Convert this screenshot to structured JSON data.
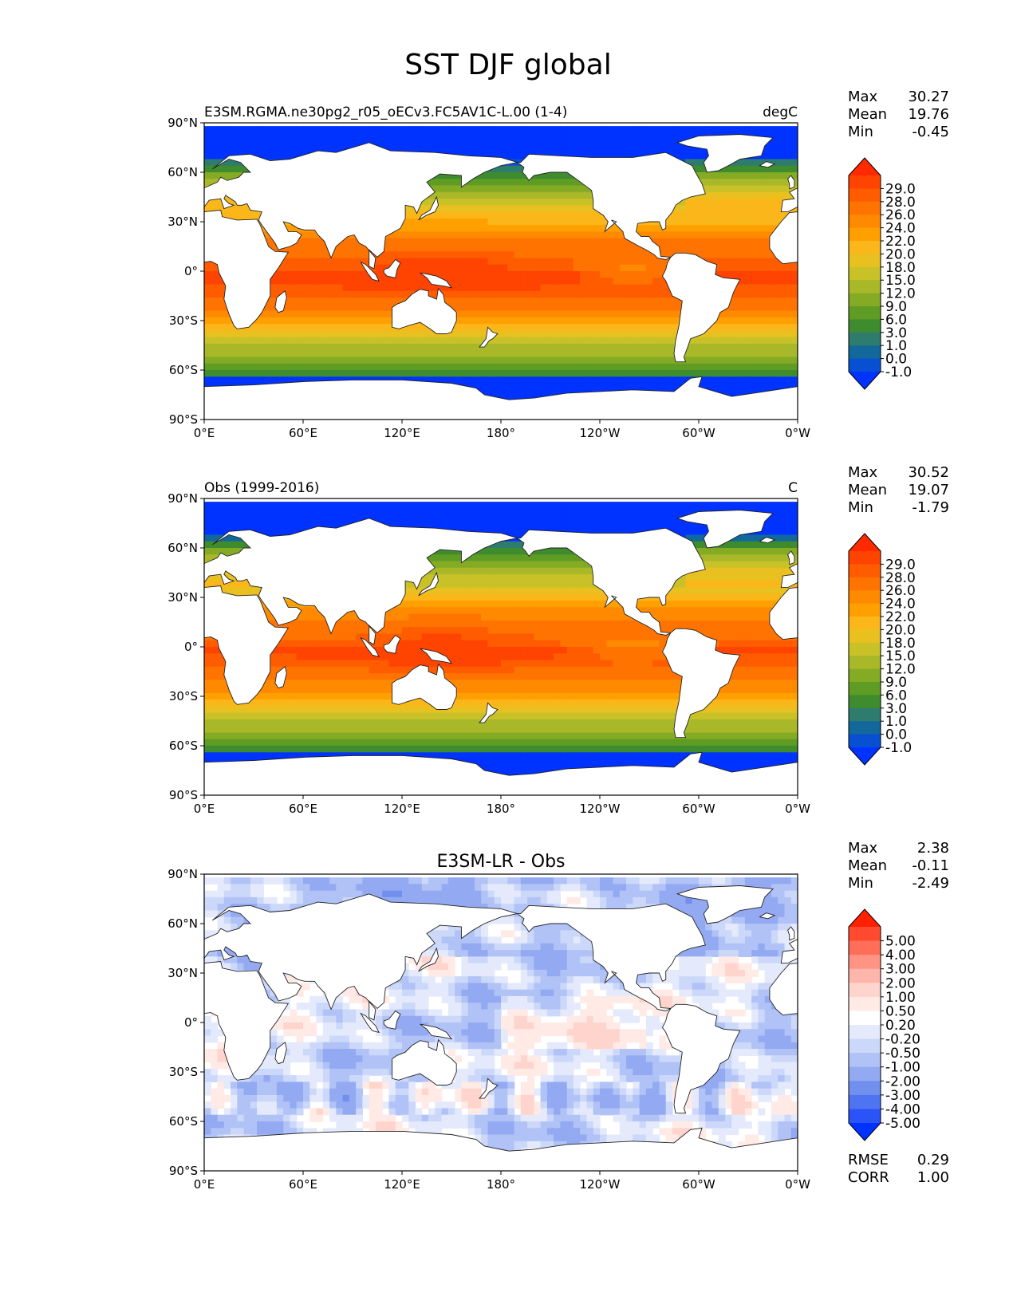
{
  "figure": {
    "title": "SST DJF global"
  },
  "chart_data": [
    {
      "type": "heatmap",
      "panel": "test",
      "title": "",
      "left_label": "E3SM.RGMA.ne30pg2_r05_oECv3.FC5AV1C-L.00 (1-4)",
      "right_label": "degC",
      "stats": [
        {
          "label": "Max",
          "value": "30.27"
        },
        {
          "label": "Mean",
          "value": "19.76"
        },
        {
          "label": "Min",
          "value": "-0.45"
        }
      ],
      "x_ticks": [
        "0°E",
        "60°E",
        "120°E",
        "180°",
        "120°W",
        "60°W",
        "0°W"
      ],
      "y_ticks": [
        "90°N",
        "60°N",
        "30°N",
        "0°",
        "30°S",
        "60°S",
        "90°S"
      ],
      "xlim": [
        0,
        360
      ],
      "ylim": [
        -90,
        90
      ],
      "colorbar": {
        "extend": "both",
        "labels": [
          "29.0",
          "28.0",
          "26.0",
          "24.0",
          "22.0",
          "20.0",
          "18.0",
          "15.0",
          "12.0",
          "9.0",
          "6.0",
          "3.0",
          "1.0",
          "0.0",
          "-1.0"
        ],
        "colors": [
          "#ff2a00",
          "#ff4300",
          "#ff5c00",
          "#ff7300",
          "#ff8a00",
          "#ffa000",
          "#fbb71a",
          "#e8c020",
          "#c9c128",
          "#a8b828",
          "#85ab25",
          "#5f9c24",
          "#3f8c2e",
          "#2e7c6e",
          "#12689a",
          "#0850d2",
          "#0033ff"
        ]
      }
    },
    {
      "type": "heatmap",
      "panel": "reference",
      "title": "",
      "left_label": "Obs (1999-2016)",
      "right_label": "C",
      "stats": [
        {
          "label": "Max",
          "value": "30.52"
        },
        {
          "label": "Mean",
          "value": "19.07"
        },
        {
          "label": "Min",
          "value": "-1.79"
        }
      ],
      "x_ticks": [
        "0°E",
        "60°E",
        "120°E",
        "180°",
        "120°W",
        "60°W",
        "0°W"
      ],
      "y_ticks": [
        "90°N",
        "60°N",
        "30°N",
        "0°",
        "30°S",
        "60°S",
        "90°S"
      ],
      "xlim": [
        0,
        360
      ],
      "ylim": [
        -90,
        90
      ],
      "colorbar": {
        "extend": "both",
        "labels": [
          "29.0",
          "28.0",
          "26.0",
          "24.0",
          "22.0",
          "20.0",
          "18.0",
          "15.0",
          "12.0",
          "9.0",
          "6.0",
          "3.0",
          "1.0",
          "0.0",
          "-1.0"
        ],
        "colors": [
          "#ff2a00",
          "#ff4300",
          "#ff5c00",
          "#ff7300",
          "#ff8a00",
          "#ffa000",
          "#fbb71a",
          "#e8c020",
          "#c9c128",
          "#a8b828",
          "#85ab25",
          "#5f9c24",
          "#3f8c2e",
          "#2e7c6e",
          "#12689a",
          "#0850d2",
          "#0033ff"
        ]
      }
    },
    {
      "type": "heatmap",
      "panel": "diff",
      "title": "E3SM-LR - Obs",
      "left_label": "",
      "right_label": "",
      "stats": [
        {
          "label": "Max",
          "value": "2.38"
        },
        {
          "label": "Mean",
          "value": "-0.11"
        },
        {
          "label": "Min",
          "value": "-2.49"
        }
      ],
      "extra_stats": [
        {
          "label": "RMSE",
          "value": "0.29"
        },
        {
          "label": "CORR",
          "value": "1.00"
        }
      ],
      "x_ticks": [
        "0°E",
        "60°E",
        "120°E",
        "180°",
        "120°W",
        "60°W",
        "0°W"
      ],
      "y_ticks": [
        "90°N",
        "60°N",
        "30°N",
        "0°",
        "30°S",
        "60°S",
        "90°S"
      ],
      "xlim": [
        0,
        360
      ],
      "ylim": [
        -90,
        90
      ],
      "colorbar": {
        "extend": "both",
        "labels": [
          "5.00",
          "4.00",
          "3.00",
          "2.00",
          "1.00",
          "0.50",
          "0.20",
          "-0.20",
          "-0.50",
          "-1.00",
          "-2.00",
          "-3.00",
          "-4.00",
          "-5.00"
        ],
        "colors": [
          "#ff2000",
          "#ff4a30",
          "#ff6e58",
          "#ff9484",
          "#ffb6aa",
          "#ffd4cc",
          "#ffeae6",
          "#ffffff",
          "#e4eafc",
          "#ccd8fa",
          "#b0c2f6",
          "#93aaf2",
          "#7190ee",
          "#4f74f2",
          "#2a54f8",
          "#0033ff"
        ]
      }
    }
  ]
}
